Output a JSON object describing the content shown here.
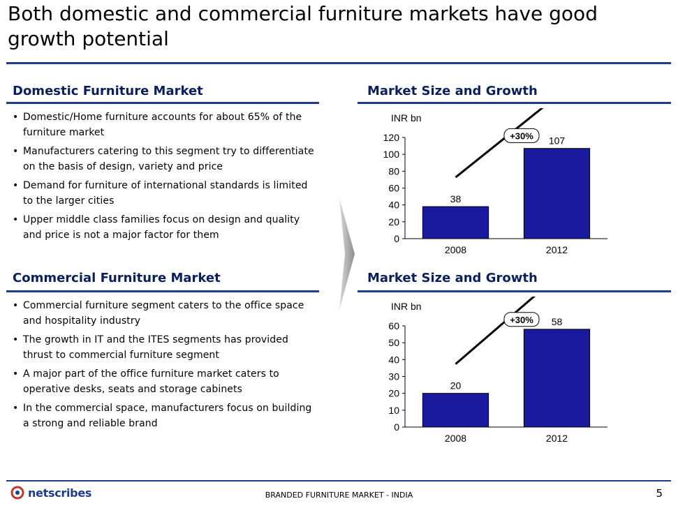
{
  "slide": {
    "title": "Both domestic and commercial furniture markets have good growth potential",
    "page_number": "5",
    "footer_text": "BRANDED FURNITURE MARKET - INDIA",
    "logo_text": "netscribes",
    "accent_color": "#1f3c88",
    "bar_color": "#1a1a9e"
  },
  "domestic": {
    "heading": "Domestic Furniture Market",
    "bullets": [
      "Domestic/Home furniture accounts for about 65% of the furniture market",
      "Manufacturers catering to this segment try to differentiate on the basis of design, variety and price",
      "Demand for furniture of international standards is limited to the larger cities",
      "Upper middle class families focus on design and quality and price is not a major factor for them"
    ]
  },
  "commercial": {
    "heading": "Commercial Furniture Market",
    "bullets": [
      "Commercial furniture segment caters to the office space and hospitality industry",
      "The growth in IT and the ITES segments has provided thrust to commercial furniture segment",
      "A major part of the office furniture market caters to operative desks, seats and storage cabinets",
      "In the commercial space, manufacturers focus on building a strong and reliable brand"
    ]
  },
  "chart_data": [
    {
      "type": "bar",
      "title": "Market Size and Growth",
      "unit_label": "INR bn",
      "categories": [
        "2008",
        "2012"
      ],
      "values": [
        38,
        107
      ],
      "ylim": [
        0,
        120
      ],
      "yticks": [
        0,
        20,
        40,
        60,
        80,
        100,
        120
      ],
      "growth_label": "+30%",
      "grid": false
    },
    {
      "type": "bar",
      "title": "Market Size and Growth",
      "unit_label": "INR bn",
      "categories": [
        "2008",
        "2012"
      ],
      "values": [
        20,
        58
      ],
      "ylim": [
        0,
        60
      ],
      "yticks": [
        0,
        10,
        20,
        30,
        40,
        50,
        60
      ],
      "growth_label": "+30%",
      "grid": false
    }
  ]
}
